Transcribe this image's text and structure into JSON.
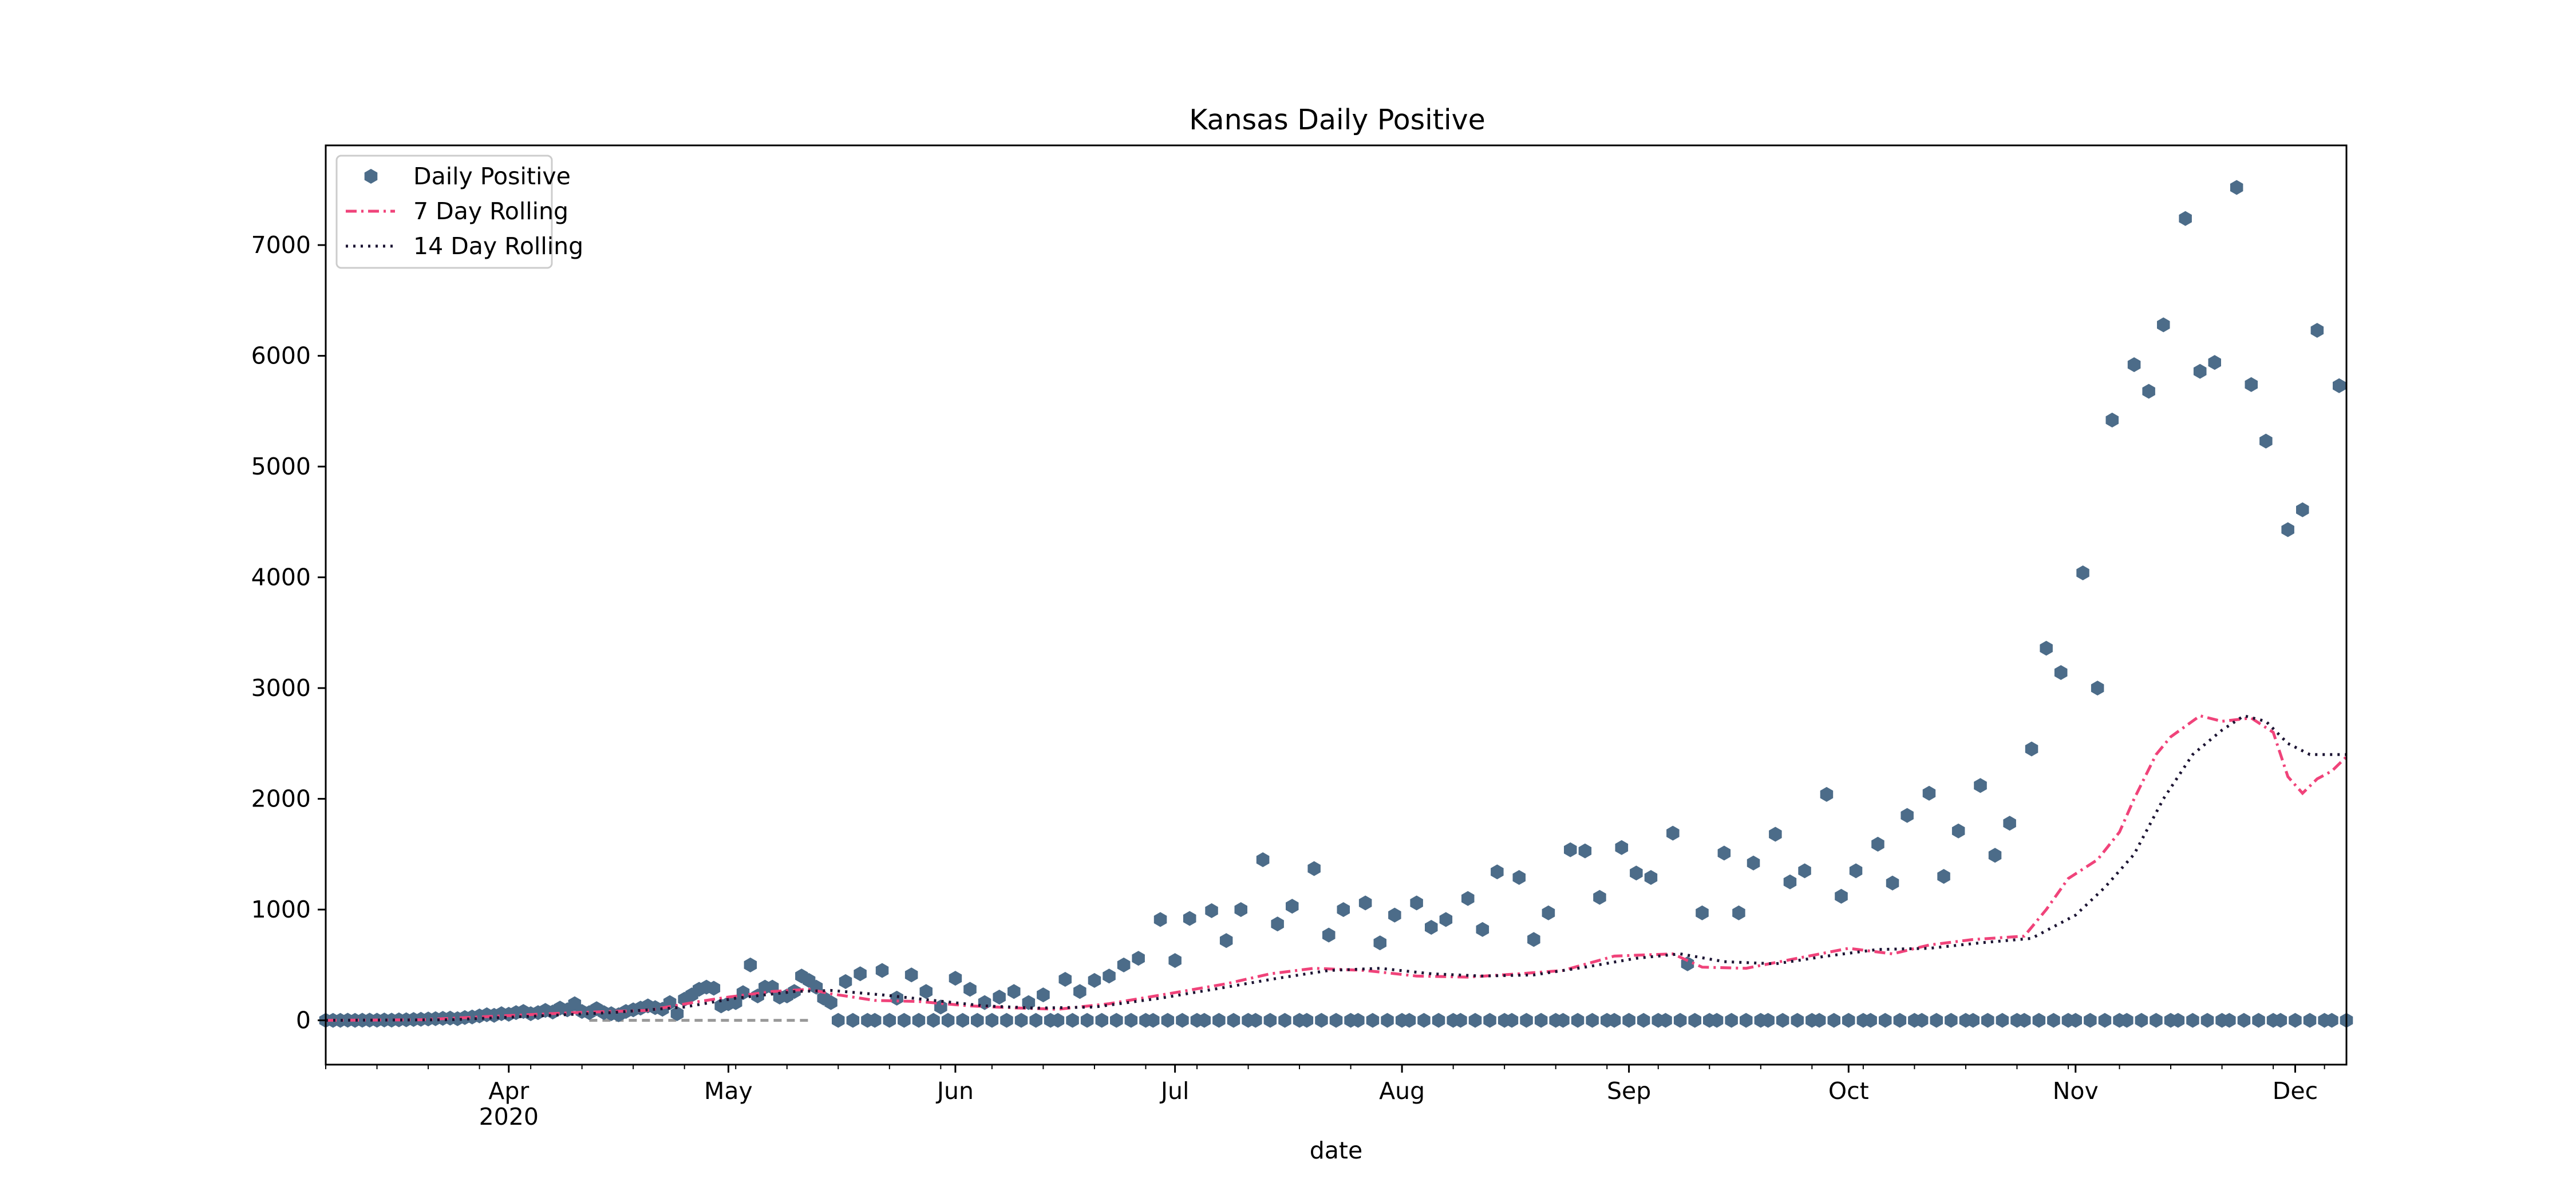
{
  "chart_data": {
    "type": "scatter",
    "title": "Kansas Daily Positive",
    "xlabel": "date",
    "ylabel": "",
    "xlim": [
      "2020-03-07",
      "2020-12-08"
    ],
    "ylim": [
      -400,
      7900
    ],
    "grid": false,
    "legend_position": "top-left",
    "x_ticks": [
      {
        "date": "2020-04-01",
        "label": "Apr",
        "sublabel": "2020"
      },
      {
        "date": "2020-05-01",
        "label": "May"
      },
      {
        "date": "2020-06-01",
        "label": "Jun"
      },
      {
        "date": "2020-07-01",
        "label": "Jul"
      },
      {
        "date": "2020-08-01",
        "label": "Aug"
      },
      {
        "date": "2020-09-01",
        "label": "Sep"
      },
      {
        "date": "2020-10-01",
        "label": "Oct"
      },
      {
        "date": "2020-11-01",
        "label": "Nov"
      },
      {
        "date": "2020-12-01",
        "label": "Dec"
      }
    ],
    "y_ticks": [
      0,
      1000,
      2000,
      3000,
      4000,
      5000,
      6000,
      7000
    ],
    "zero_fill_start": "2020-05-12",
    "series": [
      {
        "name": "Daily Positive",
        "style": "markers",
        "color": "#4c6c89",
        "points": [
          [
            "2020-03-07",
            0
          ],
          [
            "2020-03-08",
            0
          ],
          [
            "2020-03-09",
            0
          ],
          [
            "2020-03-10",
            1
          ],
          [
            "2020-03-11",
            0
          ],
          [
            "2020-03-12",
            1
          ],
          [
            "2020-03-13",
            2
          ],
          [
            "2020-03-14",
            1
          ],
          [
            "2020-03-15",
            3
          ],
          [
            "2020-03-16",
            2
          ],
          [
            "2020-03-17",
            4
          ],
          [
            "2020-03-18",
            5
          ],
          [
            "2020-03-19",
            8
          ],
          [
            "2020-03-20",
            10
          ],
          [
            "2020-03-21",
            12
          ],
          [
            "2020-03-22",
            15
          ],
          [
            "2020-03-23",
            18
          ],
          [
            "2020-03-24",
            20
          ],
          [
            "2020-03-25",
            15
          ],
          [
            "2020-03-26",
            25
          ],
          [
            "2020-03-27",
            30
          ],
          [
            "2020-03-28",
            40
          ],
          [
            "2020-03-29",
            50
          ],
          [
            "2020-03-30",
            45
          ],
          [
            "2020-03-31",
            60
          ],
          [
            "2020-04-01",
            55
          ],
          [
            "2020-04-02",
            70
          ],
          [
            "2020-04-03",
            80
          ],
          [
            "2020-04-04",
            60
          ],
          [
            "2020-04-05",
            70
          ],
          [
            "2020-04-06",
            90
          ],
          [
            "2020-04-07",
            75
          ],
          [
            "2020-04-08",
            110
          ],
          [
            "2020-04-09",
            95
          ],
          [
            "2020-04-10",
            150
          ],
          [
            "2020-04-11",
            80
          ],
          [
            "2020-04-12",
            70
          ],
          [
            "2020-04-13",
            105
          ],
          [
            "2020-04-14",
            70
          ],
          [
            "2020-04-15",
            60
          ],
          [
            "2020-04-16",
            50
          ],
          [
            "2020-04-17",
            80
          ],
          [
            "2020-04-18",
            95
          ],
          [
            "2020-04-19",
            110
          ],
          [
            "2020-04-20",
            130
          ],
          [
            "2020-04-21",
            115
          ],
          [
            "2020-04-22",
            100
          ],
          [
            "2020-04-23",
            160
          ],
          [
            "2020-04-24",
            60
          ],
          [
            "2020-04-25",
            190
          ],
          [
            "2020-04-26",
            230
          ],
          [
            "2020-04-27",
            280
          ],
          [
            "2020-04-28",
            300
          ],
          [
            "2020-04-29",
            290
          ],
          [
            "2020-04-30",
            130
          ],
          [
            "2020-05-01",
            150
          ],
          [
            "2020-05-02",
            160
          ],
          [
            "2020-05-03",
            250
          ],
          [
            "2020-05-04",
            500
          ],
          [
            "2020-05-05",
            220
          ],
          [
            "2020-05-06",
            300
          ],
          [
            "2020-05-07",
            300
          ],
          [
            "2020-05-08",
            210
          ],
          [
            "2020-05-09",
            220
          ],
          [
            "2020-05-10",
            260
          ],
          [
            "2020-05-11",
            400
          ],
          [
            "2020-05-12",
            360
          ],
          [
            "2020-05-13",
            300
          ],
          [
            "2020-05-14",
            200
          ],
          [
            "2020-05-15",
            160
          ],
          [
            "2020-05-17",
            350
          ],
          [
            "2020-05-19",
            420
          ],
          [
            "2020-05-22",
            450
          ],
          [
            "2020-05-24",
            200
          ],
          [
            "2020-05-26",
            410
          ],
          [
            "2020-05-28",
            260
          ],
          [
            "2020-05-30",
            120
          ],
          [
            "2020-06-01",
            380
          ],
          [
            "2020-06-03",
            280
          ],
          [
            "2020-06-05",
            160
          ],
          [
            "2020-06-07",
            210
          ],
          [
            "2020-06-09",
            260
          ],
          [
            "2020-06-11",
            160
          ],
          [
            "2020-06-13",
            230
          ],
          [
            "2020-06-16",
            370
          ],
          [
            "2020-06-18",
            260
          ],
          [
            "2020-06-20",
            360
          ],
          [
            "2020-06-22",
            400
          ],
          [
            "2020-06-24",
            500
          ],
          [
            "2020-06-26",
            560
          ],
          [
            "2020-06-29",
            910
          ],
          [
            "2020-07-01",
            540
          ],
          [
            "2020-07-03",
            920
          ],
          [
            "2020-07-06",
            990
          ],
          [
            "2020-07-08",
            720
          ],
          [
            "2020-07-10",
            1000
          ],
          [
            "2020-07-13",
            1450
          ],
          [
            "2020-07-15",
            870
          ],
          [
            "2020-07-17",
            1030
          ],
          [
            "2020-07-20",
            1370
          ],
          [
            "2020-07-22",
            770
          ],
          [
            "2020-07-24",
            1000
          ],
          [
            "2020-07-27",
            1060
          ],
          [
            "2020-07-29",
            700
          ],
          [
            "2020-07-31",
            950
          ],
          [
            "2020-08-03",
            1060
          ],
          [
            "2020-08-05",
            840
          ],
          [
            "2020-08-07",
            910
          ],
          [
            "2020-08-10",
            1100
          ],
          [
            "2020-08-12",
            820
          ],
          [
            "2020-08-14",
            1340
          ],
          [
            "2020-08-17",
            1290
          ],
          [
            "2020-08-19",
            730
          ],
          [
            "2020-08-21",
            970
          ],
          [
            "2020-08-24",
            1540
          ],
          [
            "2020-08-26",
            1530
          ],
          [
            "2020-08-28",
            1110
          ],
          [
            "2020-08-31",
            1560
          ],
          [
            "2020-09-02",
            1330
          ],
          [
            "2020-09-04",
            1290
          ],
          [
            "2020-09-07",
            1690
          ],
          [
            "2020-09-09",
            510
          ],
          [
            "2020-09-11",
            970
          ],
          [
            "2020-09-14",
            1510
          ],
          [
            "2020-09-16",
            970
          ],
          [
            "2020-09-18",
            1420
          ],
          [
            "2020-09-21",
            1680
          ],
          [
            "2020-09-23",
            1250
          ],
          [
            "2020-09-25",
            1350
          ],
          [
            "2020-09-28",
            2040
          ],
          [
            "2020-09-30",
            1120
          ],
          [
            "2020-10-02",
            1350
          ],
          [
            "2020-10-05",
            1590
          ],
          [
            "2020-10-07",
            1240
          ],
          [
            "2020-10-09",
            1850
          ],
          [
            "2020-10-12",
            2050
          ],
          [
            "2020-10-14",
            1300
          ],
          [
            "2020-10-16",
            1710
          ],
          [
            "2020-10-19",
            2120
          ],
          [
            "2020-10-21",
            1490
          ],
          [
            "2020-10-23",
            1780
          ],
          [
            "2020-10-26",
            2450
          ],
          [
            "2020-10-28",
            3360
          ],
          [
            "2020-10-30",
            3140
          ],
          [
            "2020-11-02",
            4040
          ],
          [
            "2020-11-04",
            3000
          ],
          [
            "2020-11-06",
            5420
          ],
          [
            "2020-11-09",
            5920
          ],
          [
            "2020-11-11",
            5680
          ],
          [
            "2020-11-13",
            6280
          ],
          [
            "2020-11-16",
            7240
          ],
          [
            "2020-11-18",
            5860
          ],
          [
            "2020-11-20",
            5940
          ],
          [
            "2020-11-23",
            7520
          ],
          [
            "2020-11-25",
            5740
          ],
          [
            "2020-11-27",
            5230
          ],
          [
            "2020-11-30",
            4430
          ],
          [
            "2020-12-02",
            4610
          ],
          [
            "2020-12-04",
            6230
          ],
          [
            "2020-12-07",
            5730
          ]
        ]
      },
      {
        "name": "7 Day Rolling",
        "style": "dashdot",
        "color": "#f0437a",
        "points": [
          [
            "2020-03-07",
            0
          ],
          [
            "2020-03-20",
            5
          ],
          [
            "2020-03-31",
            40
          ],
          [
            "2020-04-10",
            70
          ],
          [
            "2020-04-20",
            90
          ],
          [
            "2020-04-27",
            170
          ],
          [
            "2020-05-01",
            210
          ],
          [
            "2020-05-07",
            260
          ],
          [
            "2020-05-12",
            280
          ],
          [
            "2020-05-15",
            240
          ],
          [
            "2020-05-21",
            180
          ],
          [
            "2020-05-27",
            170
          ],
          [
            "2020-06-03",
            130
          ],
          [
            "2020-06-10",
            110
          ],
          [
            "2020-06-15",
            100
          ],
          [
            "2020-06-22",
            150
          ],
          [
            "2020-07-01",
            250
          ],
          [
            "2020-07-08",
            330
          ],
          [
            "2020-07-14",
            420
          ],
          [
            "2020-07-20",
            470
          ],
          [
            "2020-07-27",
            450
          ],
          [
            "2020-08-03",
            400
          ],
          [
            "2020-08-10",
            390
          ],
          [
            "2020-08-17",
            420
          ],
          [
            "2020-08-23",
            450
          ],
          [
            "2020-08-30",
            580
          ],
          [
            "2020-09-03",
            590
          ],
          [
            "2020-09-07",
            600
          ],
          [
            "2020-09-11",
            480
          ],
          [
            "2020-09-17",
            470
          ],
          [
            "2020-09-24",
            560
          ],
          [
            "2020-10-01",
            650
          ],
          [
            "2020-10-07",
            600
          ],
          [
            "2020-10-12",
            680
          ],
          [
            "2020-10-18",
            730
          ],
          [
            "2020-10-25",
            760
          ],
          [
            "2020-10-28",
            1000
          ],
          [
            "2020-10-31",
            1280
          ],
          [
            "2020-11-04",
            1450
          ],
          [
            "2020-11-07",
            1700
          ],
          [
            "2020-11-09",
            2000
          ],
          [
            "2020-11-12",
            2400
          ],
          [
            "2020-11-14",
            2560
          ],
          [
            "2020-11-18",
            2750
          ],
          [
            "2020-11-21",
            2700
          ],
          [
            "2020-11-25",
            2730
          ],
          [
            "2020-11-28",
            2600
          ],
          [
            "2020-11-30",
            2200
          ],
          [
            "2020-12-02",
            2050
          ],
          [
            "2020-12-04",
            2180
          ],
          [
            "2020-12-06",
            2250
          ],
          [
            "2020-12-08",
            2380
          ]
        ]
      },
      {
        "name": "14 Day Rolling",
        "style": "dotted",
        "color": "#1c1433",
        "points": [
          [
            "2020-03-07",
            0
          ],
          [
            "2020-03-24",
            5
          ],
          [
            "2020-04-05",
            40
          ],
          [
            "2020-04-15",
            70
          ],
          [
            "2020-04-25",
            120
          ],
          [
            "2020-05-02",
            200
          ],
          [
            "2020-05-10",
            260
          ],
          [
            "2020-05-15",
            270
          ],
          [
            "2020-05-22",
            230
          ],
          [
            "2020-05-29",
            180
          ],
          [
            "2020-06-05",
            130
          ],
          [
            "2020-06-12",
            110
          ],
          [
            "2020-06-20",
            120
          ],
          [
            "2020-06-29",
            200
          ],
          [
            "2020-07-08",
            300
          ],
          [
            "2020-07-15",
            380
          ],
          [
            "2020-07-22",
            450
          ],
          [
            "2020-07-29",
            470
          ],
          [
            "2020-08-05",
            420
          ],
          [
            "2020-08-12",
            400
          ],
          [
            "2020-08-19",
            410
          ],
          [
            "2020-08-26",
            480
          ],
          [
            "2020-09-02",
            560
          ],
          [
            "2020-09-08",
            600
          ],
          [
            "2020-09-14",
            530
          ],
          [
            "2020-09-21",
            510
          ],
          [
            "2020-09-28",
            580
          ],
          [
            "2020-10-05",
            640
          ],
          [
            "2020-10-12",
            650
          ],
          [
            "2020-10-19",
            700
          ],
          [
            "2020-10-26",
            740
          ],
          [
            "2020-11-01",
            950
          ],
          [
            "2020-11-05",
            1200
          ],
          [
            "2020-11-09",
            1500
          ],
          [
            "2020-11-13",
            2000
          ],
          [
            "2020-11-17",
            2400
          ],
          [
            "2020-11-21",
            2620
          ],
          [
            "2020-11-24",
            2750
          ],
          [
            "2020-11-27",
            2700
          ],
          [
            "2020-11-30",
            2500
          ],
          [
            "2020-12-03",
            2400
          ],
          [
            "2020-12-08",
            2400
          ]
        ]
      }
    ],
    "baseline": {
      "style": "dashed",
      "color": "#999999",
      "points": [
        [
          "2020-04-12",
          0
        ],
        [
          "2020-05-12",
          0
        ]
      ]
    }
  }
}
